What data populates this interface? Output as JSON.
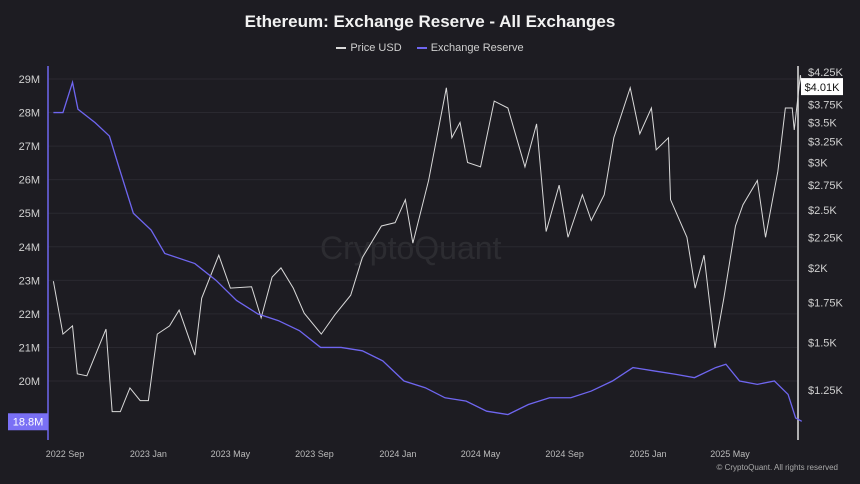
{
  "chart_data": {
    "type": "line",
    "title": "Ethereum: Exchange Reserve - All Exchanges",
    "legend_position": "top",
    "grid": true,
    "x_ticks": [
      "2022 Sep",
      "2023 Jan",
      "2023 May",
      "2023 Sep",
      "2024 Jan",
      "2024 May",
      "2024 Sep",
      "2025 Jan",
      "2025 May"
    ],
    "y_left": {
      "ticks": [
        "29M",
        "28M",
        "27M",
        "26M",
        "25M",
        "24M",
        "23M",
        "22M",
        "21M",
        "20M"
      ],
      "range_millions": [
        18.7,
        29.2
      ],
      "current_label": "18.8M"
    },
    "y_right": {
      "scale": "log",
      "ticks": [
        "$4.25K",
        "$3.75K",
        "$3.5K",
        "$3.25K",
        "$3K",
        "$2.75K",
        "$2.5K",
        "$2.25K",
        "$2K",
        "$1.75K",
        "$1.5K",
        "$1.25K"
      ],
      "current_label": "$4.01K"
    },
    "series": [
      {
        "name": "Price USD",
        "color": "#d9d9d9",
        "axis": "right",
        "points": [
          [
            "2022-08-15",
            1900
          ],
          [
            "2022-08-29",
            1550
          ],
          [
            "2022-09-12",
            1600
          ],
          [
            "2022-09-19",
            1330
          ],
          [
            "2022-10-03",
            1320
          ],
          [
            "2022-10-31",
            1580
          ],
          [
            "2022-11-09",
            1150
          ],
          [
            "2022-11-21",
            1150
          ],
          [
            "2022-12-05",
            1260
          ],
          [
            "2022-12-20",
            1200
          ],
          [
            "2023-01-01",
            1200
          ],
          [
            "2023-01-14",
            1550
          ],
          [
            "2023-02-01",
            1600
          ],
          [
            "2023-02-15",
            1700
          ],
          [
            "2023-03-10",
            1430
          ],
          [
            "2023-03-20",
            1780
          ],
          [
            "2023-04-14",
            2100
          ],
          [
            "2023-05-01",
            1850
          ],
          [
            "2023-06-01",
            1860
          ],
          [
            "2023-06-15",
            1650
          ],
          [
            "2023-07-01",
            1930
          ],
          [
            "2023-07-14",
            2000
          ],
          [
            "2023-08-01",
            1850
          ],
          [
            "2023-08-17",
            1680
          ],
          [
            "2023-09-11",
            1550
          ],
          [
            "2023-10-01",
            1670
          ],
          [
            "2023-10-24",
            1800
          ],
          [
            "2023-11-10",
            2080
          ],
          [
            "2023-12-08",
            2350
          ],
          [
            "2023-12-28",
            2380
          ],
          [
            "2024-01-12",
            2600
          ],
          [
            "2024-01-23",
            2200
          ],
          [
            "2024-02-15",
            2800
          ],
          [
            "2024-03-12",
            4000
          ],
          [
            "2024-03-20",
            3300
          ],
          [
            "2024-04-01",
            3500
          ],
          [
            "2024-04-12",
            3000
          ],
          [
            "2024-05-01",
            2950
          ],
          [
            "2024-05-21",
            3800
          ],
          [
            "2024-06-10",
            3700
          ],
          [
            "2024-07-05",
            2950
          ],
          [
            "2024-07-22",
            3480
          ],
          [
            "2024-08-05",
            2300
          ],
          [
            "2024-08-24",
            2750
          ],
          [
            "2024-09-06",
            2250
          ],
          [
            "2024-09-27",
            2650
          ],
          [
            "2024-10-10",
            2400
          ],
          [
            "2024-10-29",
            2650
          ],
          [
            "2024-11-12",
            3300
          ],
          [
            "2024-12-06",
            4000
          ],
          [
            "2024-12-20",
            3350
          ],
          [
            "2025-01-06",
            3700
          ],
          [
            "2025-01-13",
            3150
          ],
          [
            "2025-01-31",
            3300
          ],
          [
            "2025-02-03",
            2600
          ],
          [
            "2025-02-27",
            2250
          ],
          [
            "2025-03-11",
            1850
          ],
          [
            "2025-03-24",
            2100
          ],
          [
            "2025-04-09",
            1470
          ],
          [
            "2025-04-22",
            1780
          ],
          [
            "2025-05-09",
            2350
          ],
          [
            "2025-05-20",
            2550
          ],
          [
            "2025-06-10",
            2800
          ],
          [
            "2025-06-22",
            2250
          ],
          [
            "2025-07-10",
            2900
          ],
          [
            "2025-07-21",
            3700
          ],
          [
            "2025-07-31",
            3700
          ],
          [
            "2025-08-03",
            3400
          ],
          [
            "2025-08-12",
            4200
          ],
          [
            "2025-08-14",
            4010
          ]
        ]
      },
      {
        "name": "Exchange Reserve",
        "color": "#6f66f0",
        "axis": "left",
        "points": [
          [
            "2022-08-15",
            28.0
          ],
          [
            "2022-08-29",
            28.0
          ],
          [
            "2022-09-12",
            28.9
          ],
          [
            "2022-09-20",
            28.1
          ],
          [
            "2022-10-15",
            27.7
          ],
          [
            "2022-11-05",
            27.3
          ],
          [
            "2022-11-20",
            26.3
          ],
          [
            "2022-12-10",
            25.0
          ],
          [
            "2023-01-05",
            24.5
          ],
          [
            "2023-01-25",
            23.8
          ],
          [
            "2023-03-10",
            23.5
          ],
          [
            "2023-04-10",
            23.0
          ],
          [
            "2023-05-10",
            22.4
          ],
          [
            "2023-06-10",
            22.0
          ],
          [
            "2023-07-10",
            21.8
          ],
          [
            "2023-08-10",
            21.5
          ],
          [
            "2023-09-10",
            21.0
          ],
          [
            "2023-10-10",
            21.0
          ],
          [
            "2023-11-10",
            20.9
          ],
          [
            "2023-12-10",
            20.6
          ],
          [
            "2024-01-10",
            20.0
          ],
          [
            "2024-02-10",
            19.8
          ],
          [
            "2024-03-10",
            19.5
          ],
          [
            "2024-04-10",
            19.4
          ],
          [
            "2024-05-10",
            19.1
          ],
          [
            "2024-06-10",
            19.0
          ],
          [
            "2024-07-10",
            19.3
          ],
          [
            "2024-08-10",
            19.5
          ],
          [
            "2024-09-10",
            19.5
          ],
          [
            "2024-10-10",
            19.7
          ],
          [
            "2024-11-10",
            20.0
          ],
          [
            "2024-12-10",
            20.4
          ],
          [
            "2025-01-10",
            20.3
          ],
          [
            "2025-02-10",
            20.2
          ],
          [
            "2025-03-10",
            20.1
          ],
          [
            "2025-04-10",
            20.4
          ],
          [
            "2025-04-25",
            20.5
          ],
          [
            "2025-05-15",
            20.0
          ],
          [
            "2025-06-10",
            19.9
          ],
          [
            "2025-07-05",
            20.0
          ],
          [
            "2025-07-25",
            19.6
          ],
          [
            "2025-08-05",
            18.9
          ],
          [
            "2025-08-14",
            18.8
          ]
        ]
      }
    ]
  },
  "watermark": "CryptoQuant",
  "copyright": "© CryptoQuant. All rights reserved"
}
